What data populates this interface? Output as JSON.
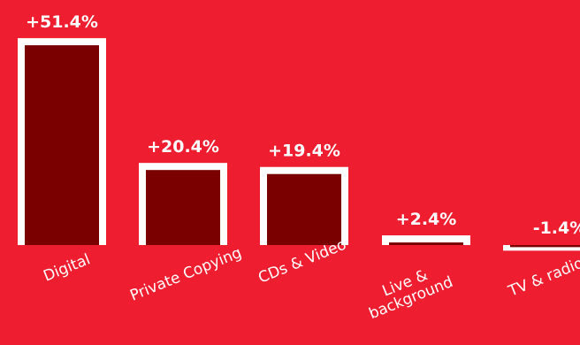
{
  "chart_data": {
    "type": "bar",
    "categories": [
      "Digital",
      "Private Copying",
      "CDs & Video",
      "Live & background",
      "TV & radio"
    ],
    "category_lines": [
      [
        "Digital"
      ],
      [
        "Private Copying"
      ],
      [
        "CDs & Video"
      ],
      [
        "Live &",
        "background"
      ],
      [
        "TV & radio"
      ]
    ],
    "values": [
      51.4,
      20.4,
      19.4,
      2.4,
      -1.4
    ],
    "value_labels": [
      "+51.4%",
      "+20.4%",
      "+19.4%",
      "+2.4%",
      "-1.4%"
    ],
    "ylim": [
      -2,
      53
    ],
    "grid": false,
    "legend": "none"
  },
  "colors": {
    "background": "#ee1d2f",
    "bar_fill": "#7a0000",
    "bar_outline": "#ffffff",
    "text": "#ffffff"
  }
}
